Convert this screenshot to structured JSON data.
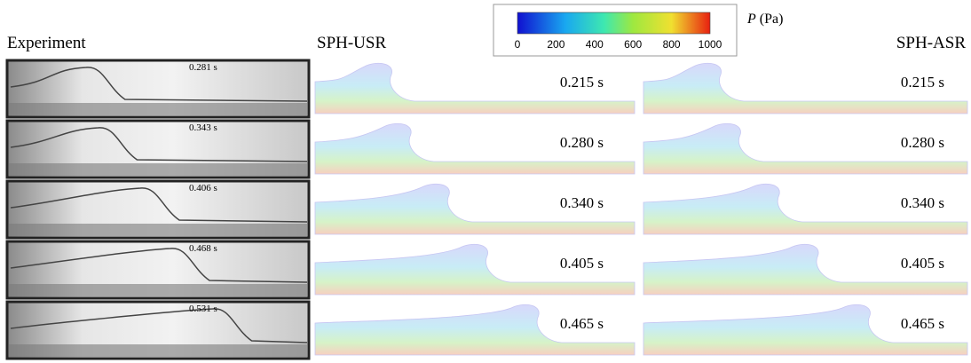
{
  "headers": {
    "experiment": "Experiment",
    "usr": "SPH-USR",
    "asr": "SPH-ASR"
  },
  "colorbar": {
    "ticks": [
      "0",
      "200",
      "400",
      "600",
      "800",
      "1000"
    ],
    "symbol": "P",
    "unit": "(Pa)"
  },
  "rows": [
    {
      "experiment": "0.281 s",
      "usr": "0.215 s",
      "asr": "0.215 s"
    },
    {
      "experiment": "0.343 s",
      "usr": "0.280 s",
      "asr": "0.280 s"
    },
    {
      "experiment": "0.406 s",
      "usr": "0.340 s",
      "asr": "0.340 s"
    },
    {
      "experiment": "0.468 s",
      "usr": "0.405 s",
      "asr": "0.405 s"
    },
    {
      "experiment": "0.531 s",
      "usr": "0.465 s",
      "asr": "0.465 s"
    }
  ]
}
